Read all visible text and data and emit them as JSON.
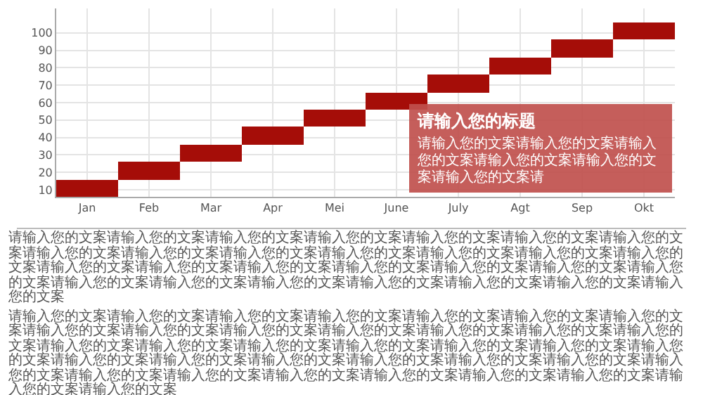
{
  "chart_data": {
    "type": "bar",
    "categories": [
      "Jan",
      "Feb",
      "Mar",
      "Apr",
      "Mei",
      "June",
      "July",
      "Agt",
      "Sep",
      "Okt"
    ],
    "base": [
      6,
      16,
      26,
      36,
      46,
      56,
      66,
      76,
      86,
      96
    ],
    "values": [
      10,
      10,
      10,
      10,
      10,
      10,
      10,
      10,
      10,
      10
    ],
    "color": "#a50d08",
    "ylim": [
      6,
      114
    ],
    "yticks": [
      10,
      20,
      30,
      40,
      50,
      60,
      70,
      80,
      90,
      100
    ],
    "grid": true,
    "annotations": [
      "请输入您的标题",
      "请输入您的文案请输入您的文案请输入您的文案请输入您的文案请输入您的文案请输入您的文案请",
      "请输入您的文案请输入您的文案请输入您的文案请输入您的文案请输入您的文案请输入您的文案请输入您的文案请输入您的文案请输入您的文案请输入您的文案请输入您的文案请输入您的文案请输入您的文案请输入您的文案请输入您的文案请输入您的文案请输入您的文案请输入您的文案请输入您的文案请输入您的文案请输入您的文案请输入您的文案请输入您的文案请输入您的文案请输入您的文案请输入您的文案请输入您的文案请输入您的文案",
      "请输入您的文案请输入您的文案请输入您的文案请输入您的文案请输入您的文案请输入您的文案请输入您的文案请输入您的文案请输入您的文案请输入您的文案请输入您的文案请输入您的文案请输入您的文案请输入您的文案请输入您的文案请输入您的文案请输入您的文案请输入您的文案请输入您的文案请输入您的文案请输入您的文案请输入您的文案请输入您的文案请输入您的文案请输入您的文案请输入您的文案请输入您的文案请输入您的文案请输入您的文案请输入您的文案请输入您的文案请输入您的文案请输入您的文案请输入您的文案请输入您的文案请输入您的文案"
    ]
  }
}
